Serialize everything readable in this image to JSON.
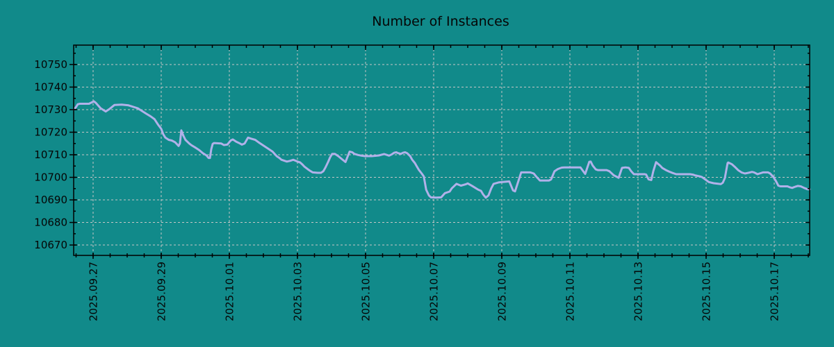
{
  "colors": {
    "background": "#118a8a",
    "line": "#b1b1e9",
    "grid": "#c6c6c6",
    "axis": "#000000",
    "text": "#050505"
  },
  "chart_data": {
    "type": "line",
    "title": "Number of Instances",
    "legend": "none",
    "grid": true,
    "x_axis": {
      "tick_labels": [
        "2025.09.27",
        "2025.09.29",
        "2025.10.01",
        "2025.10.03",
        "2025.10.05",
        "2025.10.07",
        "2025.10.09",
        "2025.10.11",
        "2025.10.13",
        "2025.10.15",
        "2025.10.17"
      ],
      "tick_positions_days": [
        0,
        2,
        4,
        6,
        8,
        10,
        12,
        14,
        16,
        18,
        20
      ],
      "minor_tick_step_days": 0.5,
      "xlim_days": [
        -0.571,
        21.041
      ],
      "label_rotation_deg": -90
    },
    "y_axis": {
      "tick_labels": [
        "10670",
        "10680",
        "10690",
        "10700",
        "10710",
        "10720",
        "10730",
        "10740",
        "10750"
      ],
      "tick_values": [
        10670,
        10680,
        10690,
        10700,
        10710,
        10720,
        10730,
        10740,
        10750
      ],
      "minor_tick_step": 5,
      "ylim": [
        10665.4,
        10758.6
      ]
    },
    "series": [
      {
        "name": "instances",
        "color": "#b1b1e9",
        "points": [
          [
            -0.57,
            10730.0
          ],
          [
            -0.5,
            10731.2
          ],
          [
            -0.45,
            10732.4
          ],
          [
            -0.39,
            10732.6
          ],
          [
            -0.12,
            10732.6
          ],
          [
            0.02,
            10733.7
          ],
          [
            0.08,
            10733.0
          ],
          [
            0.22,
            10730.6
          ],
          [
            0.37,
            10729.2
          ],
          [
            0.49,
            10730.4
          ],
          [
            0.63,
            10732.1
          ],
          [
            0.84,
            10732.2
          ],
          [
            1.04,
            10731.9
          ],
          [
            1.31,
            10730.6
          ],
          [
            1.55,
            10728.3
          ],
          [
            1.69,
            10727.0
          ],
          [
            1.8,
            10725.8
          ],
          [
            1.9,
            10723.5
          ],
          [
            2.0,
            10721.5
          ],
          [
            2.06,
            10719.1
          ],
          [
            2.12,
            10717.6
          ],
          [
            2.22,
            10716.6
          ],
          [
            2.31,
            10716.3
          ],
          [
            2.41,
            10715.5
          ],
          [
            2.51,
            10713.9
          ],
          [
            2.55,
            10715.0
          ],
          [
            2.59,
            10720.8
          ],
          [
            2.65,
            10718.5
          ],
          [
            2.71,
            10716.6
          ],
          [
            2.82,
            10715.0
          ],
          [
            2.88,
            10714.3
          ],
          [
            3.02,
            10713.0
          ],
          [
            3.12,
            10712.0
          ],
          [
            3.22,
            10710.7
          ],
          [
            3.33,
            10709.7
          ],
          [
            3.39,
            10708.6
          ],
          [
            3.43,
            10708.6
          ],
          [
            3.47,
            10712.5
          ],
          [
            3.51,
            10714.8
          ],
          [
            3.55,
            10715.2
          ],
          [
            3.76,
            10715.0
          ],
          [
            3.84,
            10714.3
          ],
          [
            3.94,
            10714.5
          ],
          [
            4.04,
            10716.3
          ],
          [
            4.1,
            10716.8
          ],
          [
            4.2,
            10715.8
          ],
          [
            4.31,
            10715.0
          ],
          [
            4.37,
            10714.5
          ],
          [
            4.45,
            10715.0
          ],
          [
            4.55,
            10717.6
          ],
          [
            4.65,
            10717.1
          ],
          [
            4.76,
            10716.6
          ],
          [
            4.86,
            10715.5
          ],
          [
            4.96,
            10714.5
          ],
          [
            5.06,
            10713.5
          ],
          [
            5.16,
            10712.5
          ],
          [
            5.27,
            10711.4
          ],
          [
            5.39,
            10709.4
          ],
          [
            5.47,
            10708.6
          ],
          [
            5.53,
            10707.8
          ],
          [
            5.69,
            10707.0
          ],
          [
            5.78,
            10707.3
          ],
          [
            5.88,
            10707.8
          ],
          [
            6.0,
            10707.0
          ],
          [
            6.08,
            10706.6
          ],
          [
            6.14,
            10705.8
          ],
          [
            6.2,
            10704.8
          ],
          [
            6.31,
            10703.5
          ],
          [
            6.39,
            10702.7
          ],
          [
            6.45,
            10702.2
          ],
          [
            6.59,
            10702.0
          ],
          [
            6.69,
            10702.0
          ],
          [
            6.76,
            10702.7
          ],
          [
            6.82,
            10704.3
          ],
          [
            6.9,
            10706.8
          ],
          [
            6.96,
            10708.9
          ],
          [
            7.02,
            10710.4
          ],
          [
            7.1,
            10710.4
          ],
          [
            7.2,
            10709.4
          ],
          [
            7.31,
            10708.0
          ],
          [
            7.41,
            10706.8
          ],
          [
            7.53,
            10711.4
          ],
          [
            7.61,
            10711.1
          ],
          [
            7.67,
            10710.4
          ],
          [
            7.78,
            10709.9
          ],
          [
            7.88,
            10709.6
          ],
          [
            7.98,
            10709.4
          ],
          [
            8.18,
            10709.4
          ],
          [
            8.39,
            10709.7
          ],
          [
            8.49,
            10710.1
          ],
          [
            8.55,
            10710.3
          ],
          [
            8.63,
            10709.9
          ],
          [
            8.69,
            10709.6
          ],
          [
            8.76,
            10710.1
          ],
          [
            8.84,
            10710.9
          ],
          [
            8.9,
            10711.1
          ],
          [
            8.96,
            10710.7
          ],
          [
            9.04,
            10710.4
          ],
          [
            9.1,
            10710.9
          ],
          [
            9.16,
            10711.1
          ],
          [
            9.22,
            10710.7
          ],
          [
            9.31,
            10709.4
          ],
          [
            9.37,
            10707.8
          ],
          [
            9.45,
            10706.3
          ],
          [
            9.51,
            10704.7
          ],
          [
            9.57,
            10703.2
          ],
          [
            9.65,
            10701.7
          ],
          [
            9.71,
            10700.4
          ],
          [
            9.78,
            10694.5
          ],
          [
            9.86,
            10692.0
          ],
          [
            9.92,
            10691.1
          ],
          [
            10.08,
            10691.0
          ],
          [
            10.22,
            10691.1
          ],
          [
            10.33,
            10693.0
          ],
          [
            10.47,
            10693.7
          ],
          [
            10.53,
            10695.1
          ],
          [
            10.67,
            10697.1
          ],
          [
            10.8,
            10696.3
          ],
          [
            10.94,
            10696.9
          ],
          [
            11.0,
            10697.3
          ],
          [
            11.14,
            10696.1
          ],
          [
            11.31,
            10694.5
          ],
          [
            11.39,
            10694.0
          ],
          [
            11.45,
            10692.5
          ],
          [
            11.53,
            10691.0
          ],
          [
            11.61,
            10692.0
          ],
          [
            11.69,
            10695.1
          ],
          [
            11.76,
            10697.1
          ],
          [
            11.92,
            10697.8
          ],
          [
            12.22,
            10698.2
          ],
          [
            12.33,
            10694.2
          ],
          [
            12.39,
            10693.8
          ],
          [
            12.57,
            10702.2
          ],
          [
            12.84,
            10702.2
          ],
          [
            12.94,
            10701.7
          ],
          [
            13.02,
            10700.2
          ],
          [
            13.12,
            10698.6
          ],
          [
            13.39,
            10698.6
          ],
          [
            13.45,
            10699.1
          ],
          [
            13.55,
            10702.7
          ],
          [
            13.65,
            10703.7
          ],
          [
            13.76,
            10704.3
          ],
          [
            13.84,
            10704.4
          ],
          [
            14.31,
            10704.4
          ],
          [
            14.45,
            10701.5
          ],
          [
            14.57,
            10706.9
          ],
          [
            14.61,
            10707.0
          ],
          [
            14.67,
            10705.2
          ],
          [
            14.76,
            10703.5
          ],
          [
            14.82,
            10703.2
          ],
          [
            15.08,
            10703.2
          ],
          [
            15.16,
            10702.7
          ],
          [
            15.29,
            10700.9
          ],
          [
            15.43,
            10699.8
          ],
          [
            15.53,
            10704.2
          ],
          [
            15.63,
            10704.4
          ],
          [
            15.73,
            10704.2
          ],
          [
            15.8,
            10702.7
          ],
          [
            15.88,
            10701.4
          ],
          [
            16.2,
            10701.4
          ],
          [
            16.24,
            10701.2
          ],
          [
            16.31,
            10699.1
          ],
          [
            16.39,
            10698.8
          ],
          [
            16.45,
            10702.7
          ],
          [
            16.53,
            10706.7
          ],
          [
            16.65,
            10705.2
          ],
          [
            16.71,
            10704.2
          ],
          [
            16.82,
            10703.2
          ],
          [
            16.92,
            10702.5
          ],
          [
            17.02,
            10701.9
          ],
          [
            17.12,
            10701.4
          ],
          [
            17.53,
            10701.4
          ],
          [
            17.61,
            10701.2
          ],
          [
            17.67,
            10700.9
          ],
          [
            17.82,
            10700.4
          ],
          [
            17.88,
            10700.1
          ],
          [
            18.08,
            10697.9
          ],
          [
            18.22,
            10697.4
          ],
          [
            18.43,
            10697.0
          ],
          [
            18.49,
            10697.6
          ],
          [
            18.55,
            10699.6
          ],
          [
            18.63,
            10706.3
          ],
          [
            18.65,
            10706.6
          ],
          [
            18.76,
            10705.8
          ],
          [
            18.84,
            10704.7
          ],
          [
            18.94,
            10703.2
          ],
          [
            19.04,
            10702.2
          ],
          [
            19.14,
            10701.7
          ],
          [
            19.24,
            10702.0
          ],
          [
            19.35,
            10702.4
          ],
          [
            19.41,
            10702.2
          ],
          [
            19.51,
            10701.4
          ],
          [
            19.57,
            10701.7
          ],
          [
            19.67,
            10702.2
          ],
          [
            19.82,
            10702.2
          ],
          [
            19.88,
            10701.7
          ],
          [
            19.98,
            10700.1
          ],
          [
            20.06,
            10698.1
          ],
          [
            20.12,
            10696.3
          ],
          [
            20.18,
            10696.0
          ],
          [
            20.39,
            10696.0
          ],
          [
            20.47,
            10695.5
          ],
          [
            20.53,
            10695.3
          ],
          [
            20.59,
            10695.7
          ],
          [
            20.69,
            10696.2
          ],
          [
            20.78,
            10696.0
          ],
          [
            20.88,
            10695.3
          ],
          [
            20.98,
            10694.7
          ],
          [
            21.04,
            10694.7
          ]
        ]
      }
    ]
  }
}
